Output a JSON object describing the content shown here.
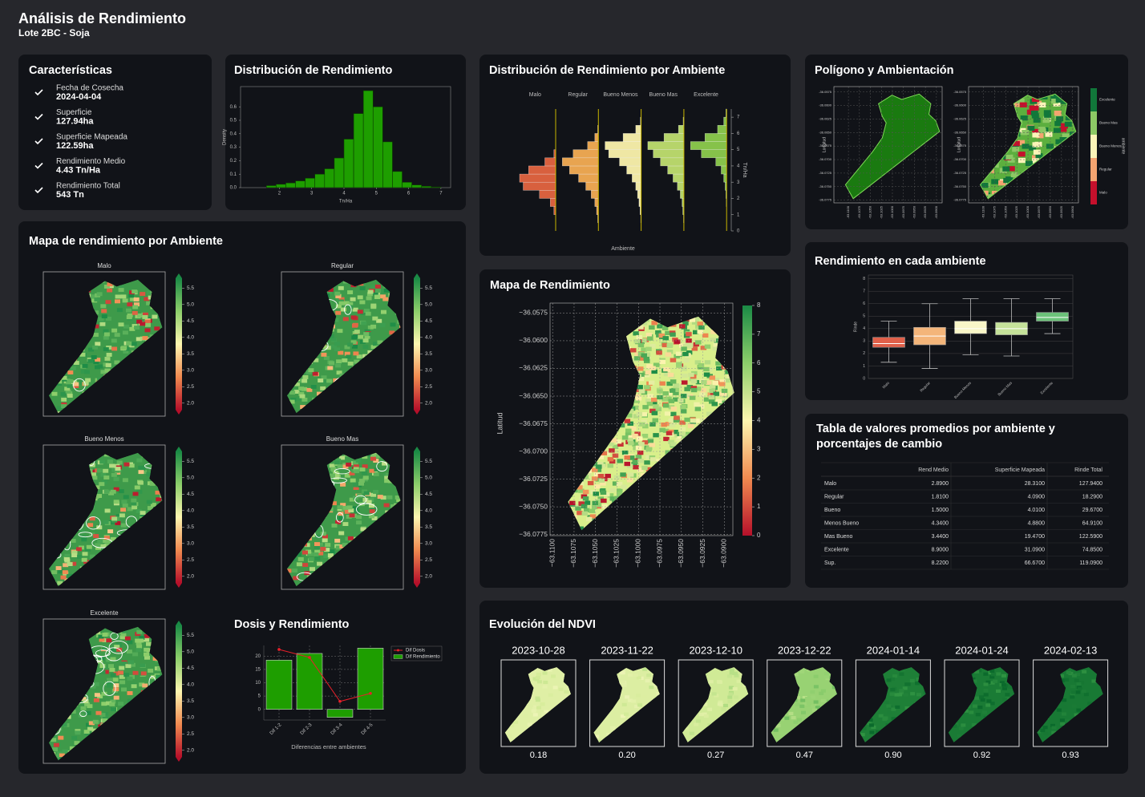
{
  "header": {
    "title": "Análisis de Rendimiento",
    "subtitle": "Lote 2BC - Soja"
  },
  "characteristics": {
    "title": "Características",
    "items": [
      {
        "label": "Fecha de Cosecha",
        "value": "2024-04-04"
      },
      {
        "label": "Superficie",
        "value": "127.94ha"
      },
      {
        "label": "Superficie Mapeada",
        "value": "122.59ha"
      },
      {
        "label": "Rendimiento Medio",
        "value": "4.43 Tn/Ha"
      },
      {
        "label": "Rendimiento Total",
        "value": "543 Tn"
      }
    ]
  },
  "chart_data": [
    {
      "type": "histogram",
      "title": "Distribución de Rendimiento",
      "xlabel": "Tn/Ha",
      "ylabel": "Density",
      "bins": [
        1.6,
        1.9,
        2.2,
        2.5,
        2.8,
        3.1,
        3.4,
        3.7,
        4.0,
        4.3,
        4.6,
        4.9,
        5.2,
        5.5,
        5.8,
        6.1,
        6.4,
        6.7,
        7.0
      ],
      "values": [
        0.015,
        0.025,
        0.035,
        0.05,
        0.07,
        0.1,
        0.14,
        0.22,
        0.36,
        0.55,
        0.72,
        0.6,
        0.34,
        0.12,
        0.04,
        0.02,
        0.01,
        0.005
      ],
      "color": "#1e9e00",
      "xlim": [
        0.8,
        7.3
      ],
      "ylim": [
        0,
        0.75
      ],
      "xticks": [
        2,
        3,
        4,
        5,
        6,
        7
      ],
      "yticks": [
        {
          "value": 0,
          "label": "0.0"
        },
        0.1,
        0.2,
        0.3,
        0.4,
        0.5,
        0.6
      ]
    },
    {
      "type": "violin",
      "title": "Distribución de Rendimiento por Ambiente",
      "xlabel": "Ambiente",
      "ylabel": "Tn/Ha",
      "bins": [
        0,
        0.5,
        1,
        1.5,
        2,
        2.5,
        3,
        3.5,
        4,
        4.5,
        5,
        5.5,
        6,
        6.5,
        7,
        7.5
      ],
      "series": [
        {
          "name": "Malo",
          "color": "#d8603e",
          "values": [
            0,
            0,
            0.05,
            0.15,
            0.45,
            0.9,
            1.0,
            0.75,
            0.3,
            0.05,
            0,
            0,
            0,
            0,
            0
          ]
        },
        {
          "name": "Regular",
          "color": "#e8a450",
          "values": [
            0,
            0.02,
            0.05,
            0.1,
            0.2,
            0.35,
            0.55,
            0.8,
            1.0,
            0.7,
            0.3,
            0.1,
            0.02,
            0,
            0
          ]
        },
        {
          "name": "Bueno Menos",
          "color": "#efe7a4",
          "values": [
            0,
            0.01,
            0.03,
            0.06,
            0.1,
            0.15,
            0.25,
            0.4,
            0.6,
            0.9,
            1.0,
            0.5,
            0.15,
            0.02,
            0
          ]
        },
        {
          "name": "Bueno Mas",
          "color": "#b6d46a",
          "values": [
            0,
            0.01,
            0.03,
            0.05,
            0.1,
            0.18,
            0.3,
            0.45,
            0.65,
            0.85,
            1.0,
            0.55,
            0.15,
            0.02,
            0
          ]
        },
        {
          "name": "Excelente",
          "color": "#86c24a",
          "values": [
            0,
            0,
            0,
            0.01,
            0.02,
            0.04,
            0.08,
            0.15,
            0.3,
            0.7,
            1.0,
            0.6,
            0.25,
            0.08,
            0.02
          ]
        }
      ],
      "ylim": [
        0,
        7.5
      ],
      "yticks": [
        0,
        1,
        2,
        3,
        4,
        5,
        6,
        7
      ]
    },
    {
      "type": "box",
      "title": "Rendimiento en cada ambiente",
      "ylabel": "Rinde",
      "categories": [
        "Malo",
        "Regular",
        "Bueno Menos",
        "Bueno Mas",
        "Excelente"
      ],
      "boxes": [
        {
          "whislo": 1.3,
          "q1": 2.5,
          "med": 2.8,
          "q3": 3.3,
          "whishi": 4.6,
          "color": "#e0604a"
        },
        {
          "whislo": 0.8,
          "q1": 2.7,
          "med": 3.4,
          "q3": 4.1,
          "whishi": 6.0,
          "color": "#f4b57a"
        },
        {
          "whislo": 1.9,
          "q1": 3.6,
          "med": 4.0,
          "q3": 4.6,
          "whishi": 6.4,
          "color": "#f8f6c8"
        },
        {
          "whislo": 1.8,
          "q1": 3.5,
          "med": 4.0,
          "q3": 4.5,
          "whishi": 6.4,
          "color": "#c5e29a"
        },
        {
          "whislo": 3.6,
          "q1": 4.6,
          "med": 4.9,
          "q3": 5.3,
          "whishi": 6.4,
          "color": "#6cc27a"
        }
      ],
      "ylim": [
        0,
        8.3
      ],
      "yticks": [
        0,
        1,
        2,
        3,
        4,
        5,
        6,
        7,
        8
      ],
      "grid": true
    },
    {
      "type": "bar",
      "title": "Dosis y Rendimiento",
      "xlabel": "Diferencias entre ambientes",
      "categories": [
        "Dif 1-2",
        "Dif 2-3",
        "Dif 3-4",
        "Dif 4-5"
      ],
      "series": [
        {
          "name": "Dif Dosis",
          "kind": "line",
          "color": "#e8202a",
          "values": [
            22.5,
            19.5,
            3,
            6
          ]
        },
        {
          "name": "Dif Rendimiento",
          "kind": "bar",
          "color": "#1e9e00",
          "values": [
            18.5,
            21,
            -3,
            23
          ]
        }
      ],
      "ylim": [
        -4,
        24
      ],
      "yticks": [
        0,
        5,
        10,
        15,
        20
      ],
      "grid": true,
      "legend": "upper right"
    }
  ],
  "polygon_maps": {
    "title": "Polígono y Ambientación",
    "ylabel": "Longitud",
    "legend_title": "ambiente",
    "ylim": [
      -36.078,
      -36.0565
    ],
    "xlim": [
      -63.1133,
      -63.0887
    ],
    "yticks": [
      {
        "value": -36.0575,
        "label": "-36.0575"
      },
      {
        "value": -36.06,
        "label": "-36.0600"
      },
      {
        "value": -36.0625,
        "label": "-36.0625"
      },
      {
        "value": -36.065,
        "label": "-36.0650"
      },
      {
        "value": -36.0675,
        "label": "-36.0675"
      },
      {
        "value": -36.07,
        "label": "-36.0700"
      },
      {
        "value": -36.0725,
        "label": "-36.0725"
      },
      {
        "value": -36.075,
        "label": "-36.0750"
      },
      {
        "value": -36.0775,
        "label": "-36.0775"
      }
    ],
    "xticks": [
      {
        "value": -63.11,
        "label": "-63.1100"
      },
      {
        "value": -63.1075,
        "label": "-63.1075"
      },
      {
        "value": -63.105,
        "label": "-63.1050"
      },
      {
        "value": -63.1025,
        "label": "-63.1025"
      },
      {
        "value": -63.1,
        "label": "-63.1000"
      },
      {
        "value": -63.0975,
        "label": "-63.0975"
      },
      {
        "value": -63.095,
        "label": "-63.0950"
      },
      {
        "value": -63.0925,
        "label": "-63.0925"
      },
      {
        "value": -63.09,
        "label": "-63.0900"
      }
    ],
    "legend": [
      {
        "name": "Excelente",
        "color": "#11773a"
      },
      {
        "name": "Bueno Mas",
        "color": "#8cc865"
      },
      {
        "name": "Bueno Menos",
        "color": "#fbf4b8"
      },
      {
        "name": "Regular",
        "color": "#f4a470"
      },
      {
        "name": "Malo",
        "color": "#c5102c"
      }
    ]
  },
  "environment_maps": {
    "title": "Mapa de rendimiento por Ambiente",
    "panels": [
      "Malo",
      "Regular",
      "Bueno Menos",
      "Bueno Mas",
      "Excelente"
    ],
    "clim": [
      1.8,
      5.8
    ],
    "colorbar_ticks": [
      {
        "value": 2,
        "label": "2.0"
      },
      2.5,
      {
        "value": 3,
        "label": "3.0"
      },
      3.5,
      {
        "value": 4,
        "label": "4.0"
      },
      4.5,
      {
        "value": 5,
        "label": "5.0"
      },
      5.5
    ]
  },
  "yield_map": {
    "title": "Mapa de Rendimiento",
    "ylabel": "Latitud",
    "ylim": [
      -36.0776,
      -36.0566
    ],
    "xlim": [
      -63.1103,
      -63.089
    ],
    "yticks": [
      {
        "value": -36.0575,
        "label": "−36.0575"
      },
      {
        "value": -36.06,
        "label": "−36.0600"
      },
      {
        "value": -36.0625,
        "label": "−36.0625"
      },
      {
        "value": -36.065,
        "label": "−36.0650"
      },
      {
        "value": -36.0675,
        "label": "−36.0675"
      },
      {
        "value": -36.07,
        "label": "−36.0700"
      },
      {
        "value": -36.0725,
        "label": "−36.0725"
      },
      {
        "value": -36.075,
        "label": "−36.0750"
      },
      {
        "value": -36.0775,
        "label": "−36.0775"
      }
    ],
    "xticks": [
      {
        "value": -63.11,
        "label": "−63.1100"
      },
      {
        "value": -63.1075,
        "label": "−63.1075"
      },
      {
        "value": -63.105,
        "label": "−63.1050"
      },
      {
        "value": -63.1025,
        "label": "−63.1025"
      },
      {
        "value": -63.1,
        "label": "−63.1000"
      },
      {
        "value": -63.0975,
        "label": "−63.0975"
      },
      {
        "value": -63.095,
        "label": "−63.0950"
      },
      {
        "value": -63.0925,
        "label": "−63.0925"
      },
      {
        "value": -63.09,
        "label": "−63.0900"
      }
    ],
    "clim": [
      0,
      8
    ],
    "colorbar_ticks": [
      0,
      1,
      2,
      3,
      4,
      5,
      6,
      7,
      8
    ]
  },
  "table": {
    "title_lines": [
      "Tabla de valores promedios por ambiente y",
      "porcentajes de cambio"
    ],
    "columns": [
      "Rend Medio",
      "Superficie Mapeada",
      "Rinde Total"
    ],
    "rows": [
      [
        "Malo",
        "2.8900",
        "28.3100",
        "127.9400"
      ],
      [
        "Regular",
        "1.8100",
        "4.0900",
        "18.2900"
      ],
      [
        "Bueno",
        "1.5000",
        "4.0100",
        "29.6700"
      ],
      [
        "Menos Bueno",
        "4.3400",
        "4.8800",
        "64.9100"
      ],
      [
        "Mas Bueno",
        "3.4400",
        "19.4700",
        "122.5900"
      ],
      [
        "Excelente",
        "8.9000",
        "31.0900",
        "74.8500"
      ],
      [
        "Sup.",
        "8.2200",
        "66.6700",
        "119.0900"
      ]
    ]
  },
  "ndvi": {
    "title": "Evolución del NDVI",
    "dates": [
      "2023-10-28",
      "2023-11-22",
      "2023-12-10",
      "2023-12-22",
      "2024-01-14",
      "2024-01-24",
      "2024-02-13"
    ],
    "values": [
      0.18,
      0.2,
      0.27,
      0.47,
      0.9,
      0.92,
      0.93
    ],
    "value_labels": [
      "0.18",
      "0.20",
      "0.27",
      "0.47",
      "0.90",
      "0.92",
      "0.93"
    ]
  }
}
